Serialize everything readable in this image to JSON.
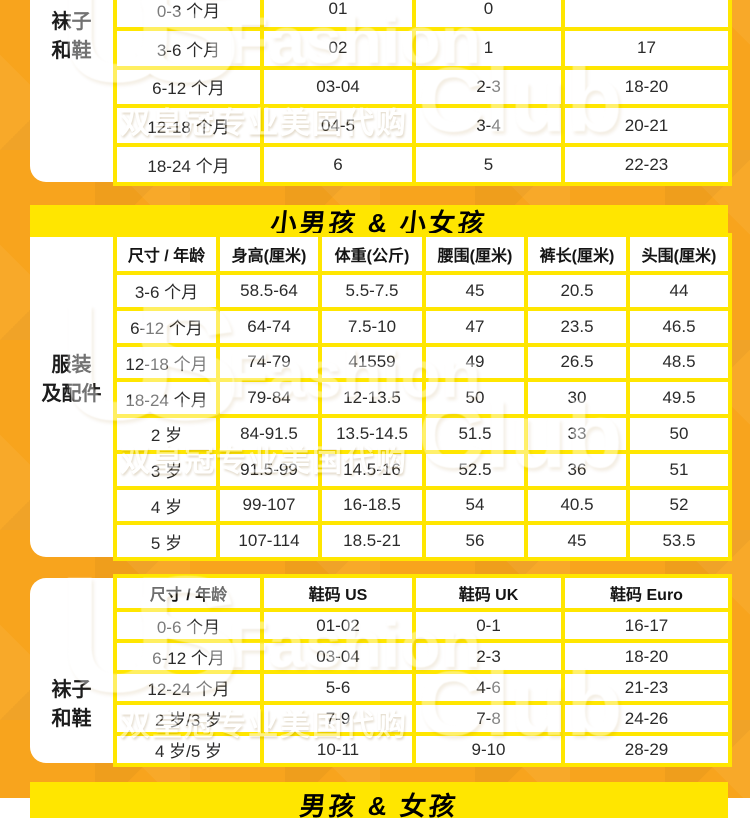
{
  "page": {
    "background_orange": "#f8a41d",
    "accent_yellow": "#ffe600",
    "text_color": "#2b2b2b"
  },
  "watermark": {
    "us": "US",
    "fashion": "Fashion",
    "club": "Club",
    "seller": "双皇冠专业美国代购"
  },
  "top_table": {
    "label_line1": "袜子",
    "label_line2": "和鞋",
    "rows": [
      [
        "0-3 个月",
        "01",
        "0",
        ""
      ],
      [
        "3-6 个月",
        "02",
        "1",
        "17"
      ],
      [
        "6-12 个月",
        "03-04",
        "2-3",
        "18-20"
      ],
      [
        "12-18 个月",
        "04-5",
        "3-4",
        "20-21"
      ],
      [
        "18-24 个月",
        "6",
        "5",
        "22-23"
      ]
    ]
  },
  "kids_section": {
    "title": "小男孩 & 小女孩"
  },
  "apparel_table": {
    "label_line1": "服装",
    "label_line2": "及配件",
    "headers": [
      "尺寸 / 年龄",
      "身高(厘米)",
      "体重(公斤)",
      "腰围(厘米)",
      "裤长(厘米)",
      "头围(厘米)"
    ],
    "rows": [
      [
        "3-6 个月",
        "58.5-64",
        "5.5-7.5",
        "45",
        "20.5",
        "44"
      ],
      [
        "6-12 个月",
        "64-74",
        "7.5-10",
        "47",
        "23.5",
        "46.5"
      ],
      [
        "12-18 个月",
        "74-79",
        "41559",
        "49",
        "26.5",
        "48.5"
      ],
      [
        "18-24 个月",
        "79-84",
        "12-13.5",
        "50",
        "30",
        "49.5"
      ],
      [
        "2 岁",
        "84-91.5",
        "13.5-14.5",
        "51.5",
        "33",
        "50"
      ],
      [
        "3 岁",
        "91.5-99",
        "14.5-16",
        "52.5",
        "36",
        "51"
      ],
      [
        "4 岁",
        "99-107",
        "16-18.5",
        "54",
        "40.5",
        "52"
      ],
      [
        "5 岁",
        "107-114",
        "18.5-21",
        "56",
        "45",
        "53.5"
      ]
    ]
  },
  "shoes_table": {
    "label_line1": "袜子",
    "label_line2": "和鞋",
    "headers": [
      "尺寸 / 年龄",
      "鞋码 US",
      "鞋码 UK",
      "鞋码 Euro"
    ],
    "rows": [
      [
        "0-6 个月",
        "01-02",
        "0-1",
        "16-17"
      ],
      [
        "6-12 个月",
        "03-04",
        "2-3",
        "18-20"
      ],
      [
        "12-24 个月",
        "5-6",
        "4-6",
        "21-23"
      ],
      [
        "2 岁/3 岁",
        "7-9",
        "7-8",
        "24-26"
      ],
      [
        "4 岁/5 岁",
        "10-11",
        "9-10",
        "28-29"
      ]
    ]
  },
  "bottom_section": {
    "title": "男孩 & 女孩"
  }
}
